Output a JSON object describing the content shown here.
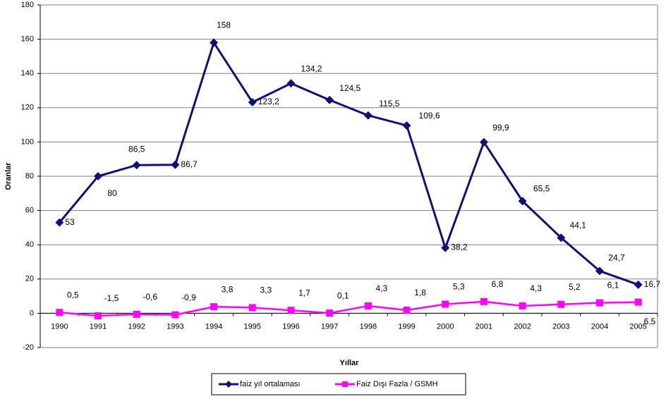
{
  "chart_data": {
    "type": "line",
    "categories": [
      "1990",
      "1991",
      "1992",
      "1993",
      "1994",
      "1995",
      "1996",
      "1997",
      "1998",
      "1999",
      "2000",
      "2001",
      "2002",
      "2003",
      "2004",
      "2005"
    ],
    "series": [
      {
        "name": "faiz yıl ortalaması",
        "color": "#10107a",
        "marker": "diamond",
        "values": [
          53,
          80,
          86.5,
          86.7,
          158,
          123.2,
          134.2,
          124.5,
          115.5,
          109.6,
          38.2,
          99.9,
          65.5,
          44.1,
          24.7,
          16.7
        ],
        "value_labels": [
          "53",
          "80",
          "86,5",
          "86,7",
          "158",
          "123,2",
          "134,2",
          "124,5",
          "115,5",
          "109,6",
          "38,2",
          "99,9",
          "65,5",
          "44,1",
          "24,7",
          "16,7"
        ]
      },
      {
        "name": "Faiz Dışı Fazla / GSMH",
        "color": "#ff00ff",
        "marker": "square",
        "values": [
          0.5,
          -1.5,
          -0.6,
          -0.9,
          3.8,
          3.3,
          1.7,
          0.1,
          4.3,
          1.8,
          5.3,
          6.8,
          4.3,
          5.2,
          6.1,
          6.5
        ],
        "value_labels": [
          "0,5",
          "-1,5",
          "-0,6",
          "-0,9",
          "3,8",
          "3,3",
          "1,7",
          "0,1",
          "4,3",
          "1,8",
          "5,3",
          "6,8",
          "4,3",
          "5,2",
          "6,1",
          "6,5"
        ]
      }
    ],
    "x_label": "Yıllar",
    "y_label": "Oranlar",
    "ylim": [
      -20,
      180
    ],
    "yticks": [
      -20,
      0,
      20,
      40,
      60,
      80,
      100,
      120,
      140,
      160,
      180
    ],
    "grid": true,
    "legend": "bottom"
  }
}
